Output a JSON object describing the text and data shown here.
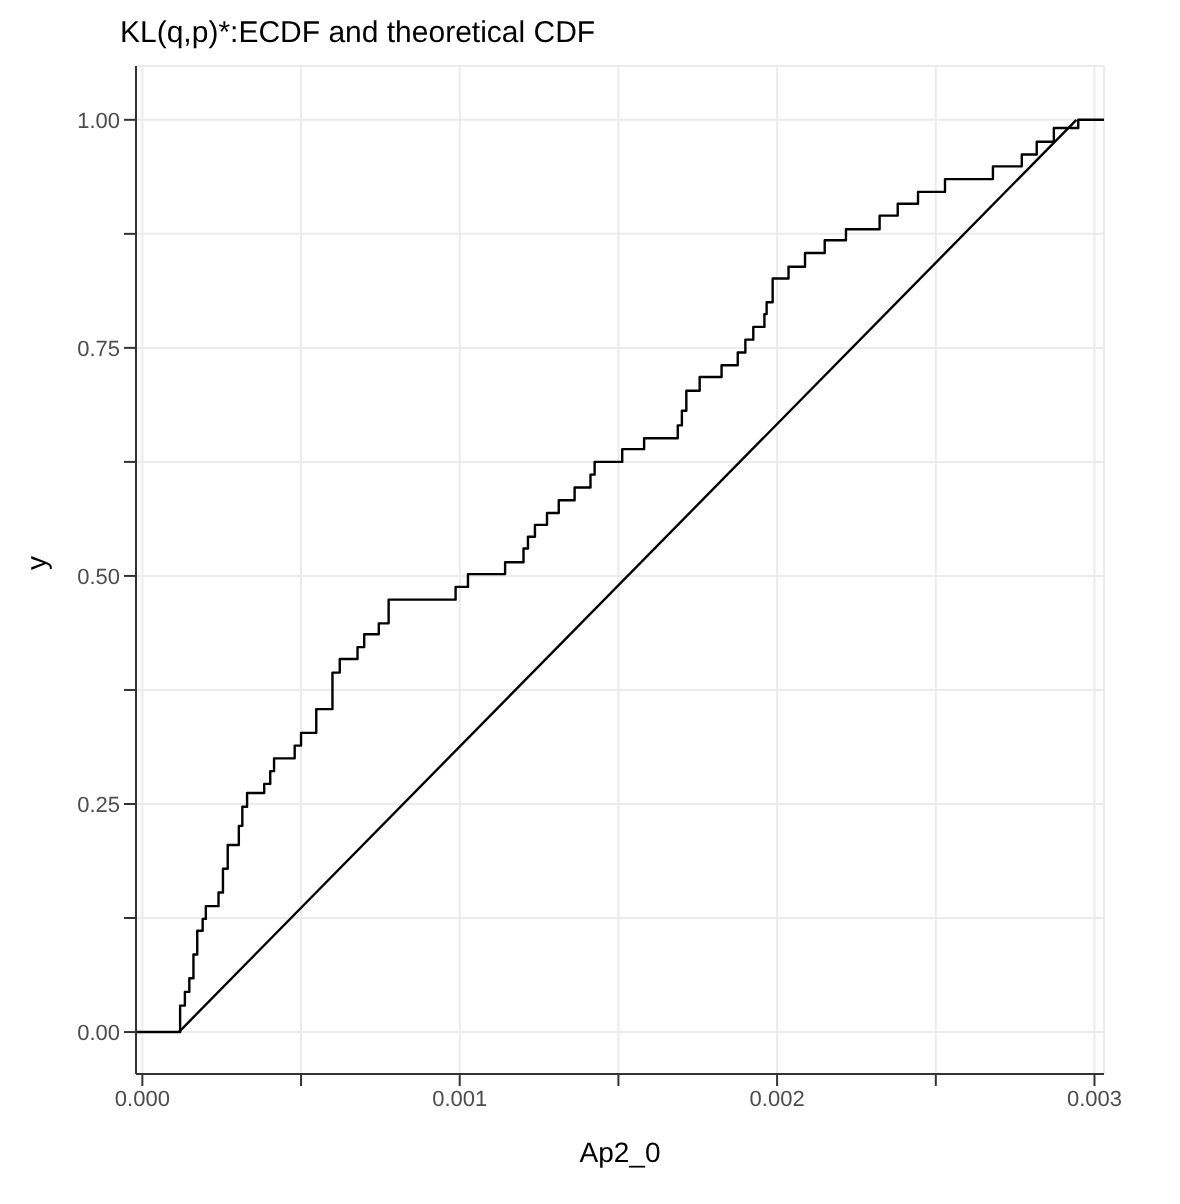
{
  "chart_data": {
    "type": "line",
    "title": "KL(q,p)*:ECDF and theoretical CDF",
    "xlabel": "Ap2_0",
    "ylabel": "y",
    "xlim": [
      -2e-05,
      0.00303
    ],
    "ylim": [
      -0.046,
      1.059
    ],
    "xticks": [
      {
        "value": 0,
        "label": "0.000"
      },
      {
        "value": 0.0005,
        "label": null
      },
      {
        "value": 0.001,
        "label": "0.001"
      },
      {
        "value": 0.0015,
        "label": null
      },
      {
        "value": 0.002,
        "label": "0.002"
      },
      {
        "value": 0.0025,
        "label": null
      },
      {
        "value": 0.003,
        "label": "0.003"
      }
    ],
    "yticks": [
      {
        "value": 0,
        "label": "0.00"
      },
      {
        "value": 0.125,
        "label": null
      },
      {
        "value": 0.25,
        "label": "0.25"
      },
      {
        "value": 0.375,
        "label": null
      },
      {
        "value": 0.5,
        "label": "0.50"
      },
      {
        "value": 0.625,
        "label": null
      },
      {
        "value": 0.75,
        "label": "0.75"
      },
      {
        "value": 0.875,
        "label": null
      },
      {
        "value": 1,
        "label": "1.00"
      }
    ],
    "grid": true,
    "legend": false,
    "marker": "none",
    "series": [
      {
        "type": "step",
        "color": "#000000",
        "x": [
          -2e-05,
          0.000119,
          0.000134,
          0.000148,
          0.000161,
          0.000173,
          0.00019,
          0.0002,
          0.00024,
          0.000254,
          0.000269,
          0.000304,
          0.000315,
          0.00033,
          0.000384,
          0.000403,
          0.000415,
          0.00048,
          0.0005,
          0.000548,
          0.000599,
          0.000622,
          0.000678,
          0.000699,
          0.000745,
          0.000776,
          0.000987,
          0.001026,
          0.001143,
          0.001201,
          0.001215,
          0.001237,
          0.001275,
          0.001312,
          0.001362,
          0.001412,
          0.001425,
          0.001512,
          0.001581,
          0.001687,
          0.0017,
          0.001714,
          0.001756,
          0.001825,
          0.001876,
          0.0019,
          0.001925,
          0.00196,
          0.001967,
          0.001986,
          0.002036,
          0.002088,
          0.00215,
          0.002217,
          0.002323,
          0.00238,
          0.002444,
          0.002529,
          0.00268,
          0.002771,
          0.002818,
          0.002872,
          0.002949,
          0.00303
        ],
        "values": [
          0,
          0.029,
          0.044,
          0.059,
          0.085,
          0.111,
          0.124,
          0.138,
          0.153,
          0.179,
          0.205,
          0.226,
          0.247,
          0.262,
          0.272,
          0.286,
          0.3,
          0.314,
          0.328,
          0.354,
          0.394,
          0.409,
          0.422,
          0.436,
          0.448,
          0.474,
          0.488,
          0.502,
          0.515,
          0.53,
          0.543,
          0.556,
          0.569,
          0.583,
          0.597,
          0.611,
          0.625,
          0.639,
          0.651,
          0.665,
          0.681,
          0.703,
          0.718,
          0.731,
          0.745,
          0.759,
          0.773,
          0.787,
          0.8,
          0.826,
          0.839,
          0.854,
          0.868,
          0.88,
          0.895,
          0.908,
          0.921,
          0.935,
          0.949,
          0.962,
          0.976,
          0.991,
          1,
          1
        ]
      },
      {
        "type": "line",
        "color": "#000000",
        "x": [
          0.000115,
          0.002943
        ],
        "values": [
          0,
          1
        ]
      }
    ]
  }
}
